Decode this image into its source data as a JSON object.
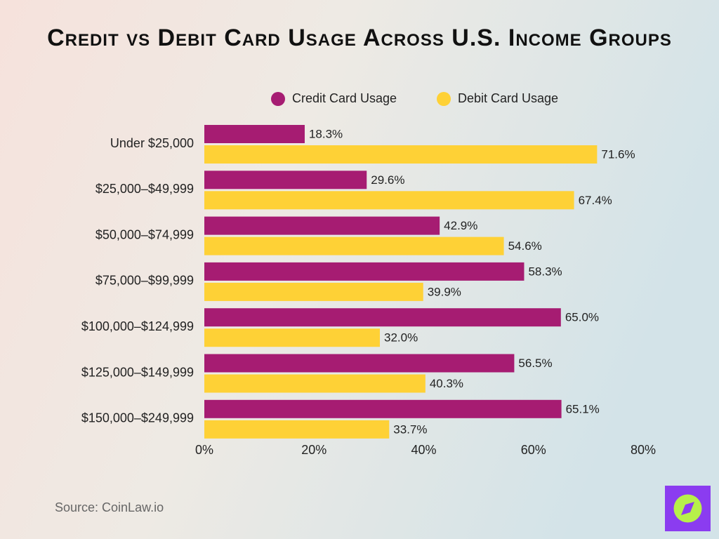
{
  "chart_data": {
    "type": "hbar",
    "title": "Credit vs Debit Card Usage Across U.S. Income Groups",
    "categories": [
      "Under $25,000",
      "$25,000–$49,999",
      "$50,000–$74,999",
      "$75,000–$99,999",
      "$100,000–$124,999",
      "$125,000–$149,999",
      "$150,000–$249,999"
    ],
    "series": [
      {
        "name": "Credit Card Usage",
        "color": "#a61c72",
        "values": [
          18.3,
          29.6,
          42.9,
          58.3,
          65.0,
          56.5,
          65.1
        ],
        "value_labels": [
          "18.3%",
          "29.6%",
          "42.9%",
          "58.3%",
          "65.0%",
          "56.5%",
          "65.1%"
        ]
      },
      {
        "name": "Debit Card Usage",
        "color": "#fed136",
        "values": [
          71.6,
          67.4,
          54.6,
          39.9,
          32.0,
          40.3,
          33.7
        ],
        "value_labels": [
          "71.6%",
          "67.4%",
          "54.6%",
          "39.9%",
          "32.0%",
          "40.3%",
          "33.7%"
        ]
      }
    ],
    "xlim": [
      0,
      80
    ],
    "xticks": [
      {
        "value": 0,
        "label": "0%"
      },
      {
        "value": 20,
        "label": "20%"
      },
      {
        "value": 40,
        "label": "40%"
      },
      {
        "value": 60,
        "label": "60%"
      },
      {
        "value": 80,
        "label": "80%"
      }
    ],
    "grid": false,
    "source": "Source: CoinLaw.io"
  }
}
